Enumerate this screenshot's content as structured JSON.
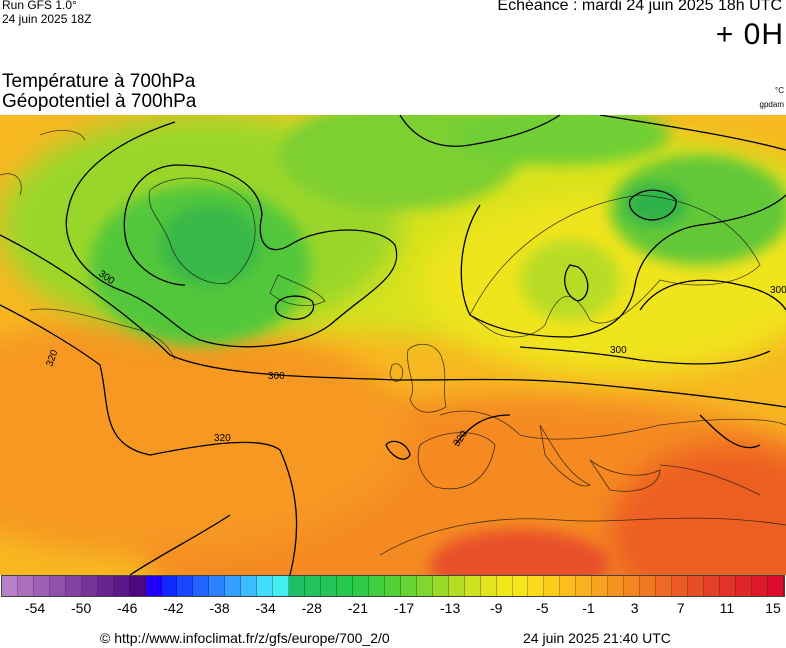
{
  "header": {
    "run_model": "Run GFS 1.0°",
    "run_date": "24 juin 2025 18Z",
    "echeance": "Echéance : mardi 24 juin 2025 18h UTC",
    "lead_time": "+ 0H"
  },
  "params": {
    "line1": "Température à 700hPa",
    "line2": "Géopotentiel à 700hPa",
    "unit_temp": "°C",
    "unit_geo": "gpdam"
  },
  "map": {
    "region": "europe",
    "contour_labels": [
      "300",
      "300",
      "300",
      "300",
      "320",
      "320",
      "320"
    ]
  },
  "legend": {
    "tick_labels": [
      "-54",
      "-50",
      "-46",
      "-42",
      "-38",
      "-34",
      "-28",
      "-21",
      "-17",
      "-13",
      "-9",
      "-5",
      "-1",
      "3",
      "7",
      "11",
      "15"
    ],
    "colors": [
      "#b67fc6",
      "#a96fbd",
      "#9c60b4",
      "#8f51ab",
      "#8242a3",
      "#75339a",
      "#682491",
      "#5b1689",
      "#4d0780",
      "#2200ff",
      "#1028ff",
      "#1a46ff",
      "#2264ff",
      "#2a82ff",
      "#32a0ff",
      "#3abeff",
      "#42dcff",
      "#44eeee",
      "#1fbf66",
      "#22c25e",
      "#24c556",
      "#26c84e",
      "#2fcb46",
      "#3fce3e",
      "#52d137",
      "#67d431",
      "#80d72d",
      "#9ada29",
      "#b4dd25",
      "#cfe121",
      "#e3e41d",
      "#f0e81b",
      "#f7e51b",
      "#fbd91c",
      "#fccc1d",
      "#fcbe1e",
      "#fbb01f",
      "#f9a220",
      "#f79421",
      "#f48622",
      "#f17823",
      "#ee6a24",
      "#eb5c25",
      "#e84e26",
      "#e54027",
      "#e23328",
      "#df2629",
      "#dc192a",
      "#d90d2b"
    ]
  },
  "footer": {
    "copyright": "© http://www.infoclimat.fr/z/gfs/europe/700_2/0",
    "generated": "24 juin 2025 21:40 UTC"
  }
}
